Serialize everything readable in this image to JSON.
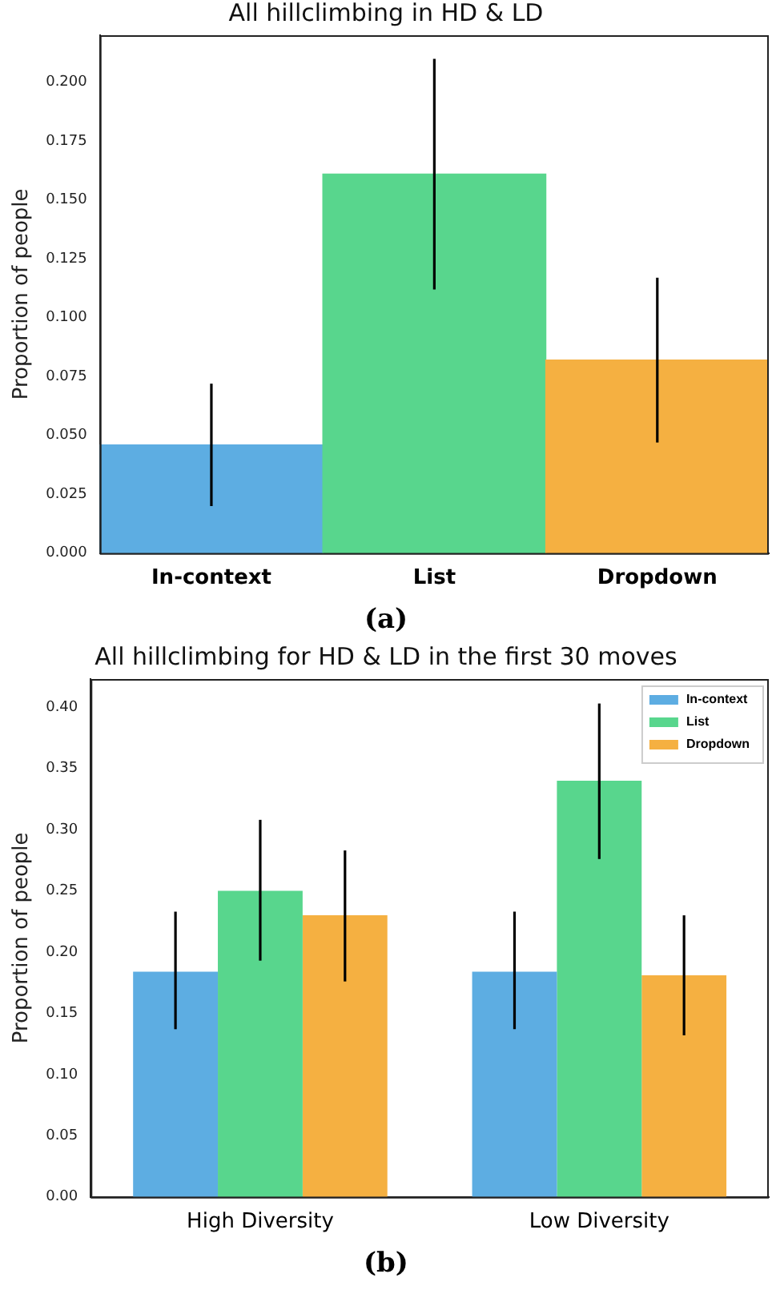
{
  "chart_data": [
    {
      "type": "bar",
      "title": "All hillclimbing in HD & LD",
      "ylabel": "Proportion of people",
      "categories": [
        "In-context",
        "List",
        "Dropdown"
      ],
      "values": [
        0.046,
        0.161,
        0.082
      ],
      "colors": [
        "#5dade2",
        "#58d68d",
        "#f5b041"
      ],
      "errors": [
        [
          0.02,
          0.072
        ],
        [
          0.112,
          0.21
        ],
        [
          0.047,
          0.117
        ]
      ],
      "ylim": [
        0,
        0.22
      ],
      "yticks": [
        {
          "value": 0,
          "label": "0.000"
        },
        {
          "value": 0.025,
          "label": "0.025"
        },
        {
          "value": 0.05,
          "label": "0.050"
        },
        {
          "value": 0.075,
          "label": "0.075"
        },
        {
          "value": 0.1,
          "label": "0.100"
        },
        {
          "value": 0.125,
          "label": "0.125"
        },
        {
          "value": 0.15,
          "label": "0.150"
        },
        {
          "value": 0.175,
          "label": "0.175"
        },
        {
          "value": 0.2,
          "label": "0.200"
        }
      ],
      "grid": false,
      "legend": false,
      "annotations": [
        "(a)"
      ]
    },
    {
      "type": "bar",
      "title": "All hillclimbing for HD & LD in the first 30 moves",
      "ylabel": "Proportion of people",
      "categories": [
        "High Diversity",
        "Low Diversity"
      ],
      "series": [
        {
          "name": "In-context",
          "color": "#5dade2",
          "values": [
            0.184,
            0.184
          ],
          "errors": [
            [
              0.137,
              0.233
            ],
            [
              0.137,
              0.233
            ]
          ]
        },
        {
          "name": "List",
          "color": "#58d68d",
          "values": [
            0.25,
            0.34
          ],
          "errors": [
            [
              0.193,
              0.308
            ],
            [
              0.276,
              0.403
            ]
          ]
        },
        {
          "name": "Dropdown",
          "color": "#f5b041",
          "values": [
            0.23,
            0.181
          ],
          "errors": [
            [
              0.176,
              0.283
            ],
            [
              0.132,
              0.23
            ]
          ]
        }
      ],
      "ylim": [
        0,
        0.423
      ],
      "yticks": [
        {
          "value": 0,
          "label": "0.00"
        },
        {
          "value": 0.05,
          "label": "0.05"
        },
        {
          "value": 0.1,
          "label": "0.10"
        },
        {
          "value": 0.15,
          "label": "0.15"
        },
        {
          "value": 0.2,
          "label": "0.20"
        },
        {
          "value": 0.25,
          "label": "0.25"
        },
        {
          "value": 0.3,
          "label": "0.30"
        },
        {
          "value": 0.35,
          "label": "0.35"
        },
        {
          "value": 0.4,
          "label": "0.40"
        }
      ],
      "grid": false,
      "legend": "top right",
      "annotations": [
        "(b)"
      ]
    }
  ]
}
